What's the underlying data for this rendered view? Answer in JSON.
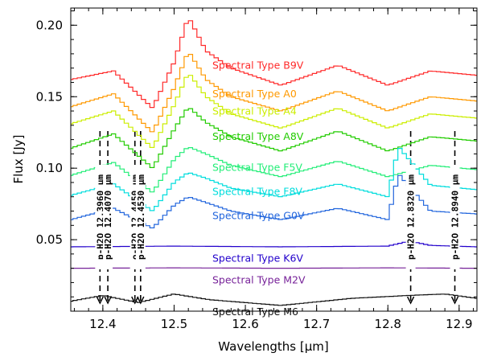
{
  "chart_data": {
    "type": "line",
    "xlabel": "Wavelengths [μm]",
    "ylabel": "Flux [Jy]",
    "xlim": [
      12.355,
      12.925
    ],
    "ylim": [
      0.0,
      0.212
    ],
    "xticks": [
      12.4,
      12.5,
      12.6,
      12.7,
      12.8,
      12.9
    ],
    "yticks": [
      0.05,
      0.1,
      0.15,
      0.2
    ],
    "grid": false,
    "legend": "inline labels",
    "series": [
      {
        "name": "Spectral Type B9V",
        "color": "#ff2a2a",
        "x": [
          12.355,
          12.415,
          12.47,
          12.5,
          12.52,
          12.545,
          12.58,
          12.65,
          12.73,
          12.8,
          12.86,
          12.925
        ],
        "y": [
          0.162,
          0.168,
          0.142,
          0.174,
          0.206,
          0.182,
          0.17,
          0.158,
          0.172,
          0.158,
          0.168,
          0.165
        ]
      },
      {
        "name": "Spectral Type A0",
        "color": "#ff9900",
        "x": [
          12.355,
          12.415,
          12.47,
          12.5,
          12.52,
          12.545,
          12.58,
          12.65,
          12.73,
          12.8,
          12.86,
          12.925
        ],
        "y": [
          0.143,
          0.152,
          0.125,
          0.156,
          0.182,
          0.162,
          0.15,
          0.14,
          0.154,
          0.14,
          0.15,
          0.147
        ]
      },
      {
        "name": "Spectral Type A4",
        "color": "#ccee00",
        "x": [
          12.355,
          12.415,
          12.47,
          12.5,
          12.52,
          12.545,
          12.58,
          12.65,
          12.73,
          12.8,
          12.86,
          12.925
        ],
        "y": [
          0.131,
          0.14,
          0.114,
          0.144,
          0.167,
          0.15,
          0.138,
          0.128,
          0.142,
          0.128,
          0.138,
          0.135
        ]
      },
      {
        "name": "Spectral Type A8V",
        "color": "#22cc00",
        "x": [
          12.355,
          12.415,
          12.47,
          12.5,
          12.52,
          12.545,
          12.58,
          12.65,
          12.73,
          12.8,
          12.86,
          12.925
        ],
        "y": [
          0.114,
          0.124,
          0.1,
          0.127,
          0.143,
          0.132,
          0.122,
          0.112,
          0.126,
          0.112,
          0.122,
          0.119
        ]
      },
      {
        "name": "Spectral Type F5V",
        "color": "#22ee77",
        "x": [
          12.355,
          12.415,
          12.47,
          12.5,
          12.52,
          12.545,
          12.58,
          12.65,
          12.73,
          12.8,
          12.86,
          12.925
        ],
        "y": [
          0.095,
          0.104,
          0.083,
          0.106,
          0.115,
          0.11,
          0.102,
          0.094,
          0.105,
          0.094,
          0.102,
          0.099
        ]
      },
      {
        "name": "Spectral Type F8V",
        "color": "#00dddd",
        "x": [
          12.355,
          12.415,
          12.47,
          12.5,
          12.52,
          12.545,
          12.58,
          12.65,
          12.73,
          12.8,
          12.815,
          12.86,
          12.925
        ],
        "y": [
          0.081,
          0.089,
          0.07,
          0.09,
          0.097,
          0.093,
          0.086,
          0.08,
          0.089,
          0.08,
          0.115,
          0.088,
          0.085
        ]
      },
      {
        "name": "Spectral Type G0V",
        "color": "#2266dd",
        "x": [
          12.355,
          12.415,
          12.47,
          12.5,
          12.52,
          12.545,
          12.58,
          12.65,
          12.73,
          12.8,
          12.815,
          12.86,
          12.925
        ],
        "y": [
          0.064,
          0.072,
          0.058,
          0.074,
          0.08,
          0.076,
          0.07,
          0.064,
          0.072,
          0.064,
          0.096,
          0.07,
          0.068
        ]
      },
      {
        "name": "Spectral Type K6V",
        "color": "#2200cc",
        "x": [
          12.355,
          12.5,
          12.65,
          12.8,
          12.83,
          12.86,
          12.925
        ],
        "y": [
          0.045,
          0.0455,
          0.045,
          0.0455,
          0.049,
          0.046,
          0.045
        ]
      },
      {
        "name": "Spectral Type M2V",
        "color": "#772299",
        "x": [
          12.355,
          12.5,
          12.65,
          12.8,
          12.925
        ],
        "y": [
          0.03,
          0.0303,
          0.03,
          0.0303,
          0.03
        ]
      },
      {
        "name": "Spectral Type M6",
        "color": "#111111",
        "x": [
          12.355,
          12.4,
          12.45,
          12.5,
          12.55,
          12.65,
          12.75,
          12.83,
          12.88,
          12.925
        ],
        "y": [
          0.007,
          0.011,
          0.006,
          0.012,
          0.008,
          0.004,
          0.009,
          0.011,
          0.012,
          0.009
        ]
      }
    ],
    "annotations": [
      {
        "text": "p-H2O 12.3960 μm",
        "x": 12.396
      },
      {
        "text": "p-H2O 12.4070 μm",
        "x": 12.407
      },
      {
        "text": "o-H2O 12.4450 μm",
        "x": 12.445
      },
      {
        "text": "p-H2O 12.4530 μm",
        "x": 12.453
      },
      {
        "text": "p-H2O 12.8320 μm",
        "x": 12.832
      },
      {
        "text": "p-H2O 12.8940 μm",
        "x": 12.894
      }
    ]
  }
}
